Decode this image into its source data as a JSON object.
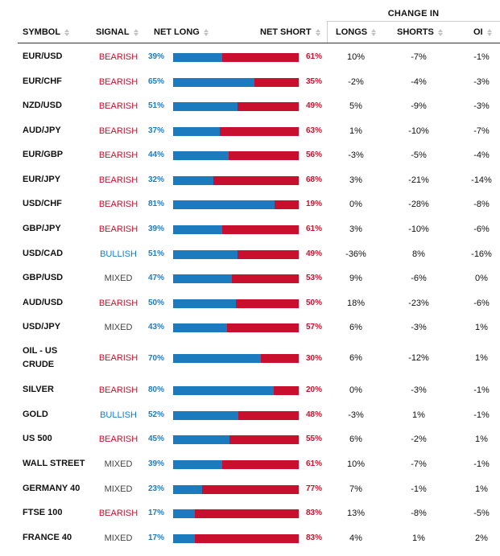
{
  "header": {
    "group_label": "CHANGE IN",
    "columns": {
      "symbol": "SYMBOL",
      "signal": "SIGNAL",
      "net_long": "NET LONG",
      "net_short": "NET SHORT",
      "longs": "LONGS",
      "shorts": "SHORTS",
      "oi": "OI"
    }
  },
  "icons": {
    "sort": "sort-arrows-icon"
  },
  "colors": {
    "long": "#1c7bbf",
    "short": "#c8102e",
    "bullish": "#1c7bbf",
    "bearish": "#c8102e",
    "mixed": "#444444"
  },
  "rows": [
    {
      "symbol": "EUR/USD",
      "signal": "BEARISH",
      "net_long": "39%",
      "net_short": "61%",
      "long_pct": 39,
      "longs": "10%",
      "shorts": "-7%",
      "oi": "-1%"
    },
    {
      "symbol": "EUR/CHF",
      "signal": "BEARISH",
      "net_long": "65%",
      "net_short": "35%",
      "long_pct": 65,
      "longs": "-2%",
      "shorts": "-4%",
      "oi": "-3%"
    },
    {
      "symbol": "NZD/USD",
      "signal": "BEARISH",
      "net_long": "51%",
      "net_short": "49%",
      "long_pct": 51,
      "longs": "5%",
      "shorts": "-9%",
      "oi": "-3%"
    },
    {
      "symbol": "AUD/JPY",
      "signal": "BEARISH",
      "net_long": "37%",
      "net_short": "63%",
      "long_pct": 37,
      "longs": "1%",
      "shorts": "-10%",
      "oi": "-7%"
    },
    {
      "symbol": "EUR/GBP",
      "signal": "BEARISH",
      "net_long": "44%",
      "net_short": "56%",
      "long_pct": 44,
      "longs": "-3%",
      "shorts": "-5%",
      "oi": "-4%"
    },
    {
      "symbol": "EUR/JPY",
      "signal": "BEARISH",
      "net_long": "32%",
      "net_short": "68%",
      "long_pct": 32,
      "longs": "3%",
      "shorts": "-21%",
      "oi": "-14%"
    },
    {
      "symbol": "USD/CHF",
      "signal": "BEARISH",
      "net_long": "81%",
      "net_short": "19%",
      "long_pct": 81,
      "longs": "0%",
      "shorts": "-28%",
      "oi": "-8%"
    },
    {
      "symbol": "GBP/JPY",
      "signal": "BEARISH",
      "net_long": "39%",
      "net_short": "61%",
      "long_pct": 39,
      "longs": "3%",
      "shorts": "-10%",
      "oi": "-6%"
    },
    {
      "symbol": "USD/CAD",
      "signal": "BULLISH",
      "net_long": "51%",
      "net_short": "49%",
      "long_pct": 51,
      "longs": "-36%",
      "shorts": "8%",
      "oi": "-16%"
    },
    {
      "symbol": "GBP/USD",
      "signal": "MIXED",
      "net_long": "47%",
      "net_short": "53%",
      "long_pct": 47,
      "longs": "9%",
      "shorts": "-6%",
      "oi": "0%"
    },
    {
      "symbol": "AUD/USD",
      "signal": "BEARISH",
      "net_long": "50%",
      "net_short": "50%",
      "long_pct": 50,
      "longs": "18%",
      "shorts": "-23%",
      "oi": "-6%"
    },
    {
      "symbol": "USD/JPY",
      "signal": "MIXED",
      "net_long": "43%",
      "net_short": "57%",
      "long_pct": 43,
      "longs": "6%",
      "shorts": "-3%",
      "oi": "1%"
    },
    {
      "symbol": "OIL - US CRUDE",
      "signal": "BEARISH",
      "net_long": "70%",
      "net_short": "30%",
      "long_pct": 70,
      "longs": "6%",
      "shorts": "-12%",
      "oi": "1%"
    },
    {
      "symbol": "SILVER",
      "signal": "BEARISH",
      "net_long": "80%",
      "net_short": "20%",
      "long_pct": 80,
      "longs": "0%",
      "shorts": "-3%",
      "oi": "-1%"
    },
    {
      "symbol": "GOLD",
      "signal": "BULLISH",
      "net_long": "52%",
      "net_short": "48%",
      "long_pct": 52,
      "longs": "-3%",
      "shorts": "1%",
      "oi": "-1%"
    },
    {
      "symbol": "US 500",
      "signal": "BEARISH",
      "net_long": "45%",
      "net_short": "55%",
      "long_pct": 45,
      "longs": "6%",
      "shorts": "-2%",
      "oi": "1%"
    },
    {
      "symbol": "WALL STREET",
      "signal": "MIXED",
      "net_long": "39%",
      "net_short": "61%",
      "long_pct": 39,
      "longs": "10%",
      "shorts": "-7%",
      "oi": "-1%"
    },
    {
      "symbol": "GERMANY 40",
      "signal": "MIXED",
      "net_long": "23%",
      "net_short": "77%",
      "long_pct": 23,
      "longs": "7%",
      "shorts": "-1%",
      "oi": "1%"
    },
    {
      "symbol": "FTSE 100",
      "signal": "BEARISH",
      "net_long": "17%",
      "net_short": "83%",
      "long_pct": 17,
      "longs": "13%",
      "shorts": "-8%",
      "oi": "-5%"
    },
    {
      "symbol": "FRANCE 40",
      "signal": "MIXED",
      "net_long": "17%",
      "net_short": "83%",
      "long_pct": 17,
      "longs": "4%",
      "shorts": "1%",
      "oi": "2%"
    }
  ]
}
